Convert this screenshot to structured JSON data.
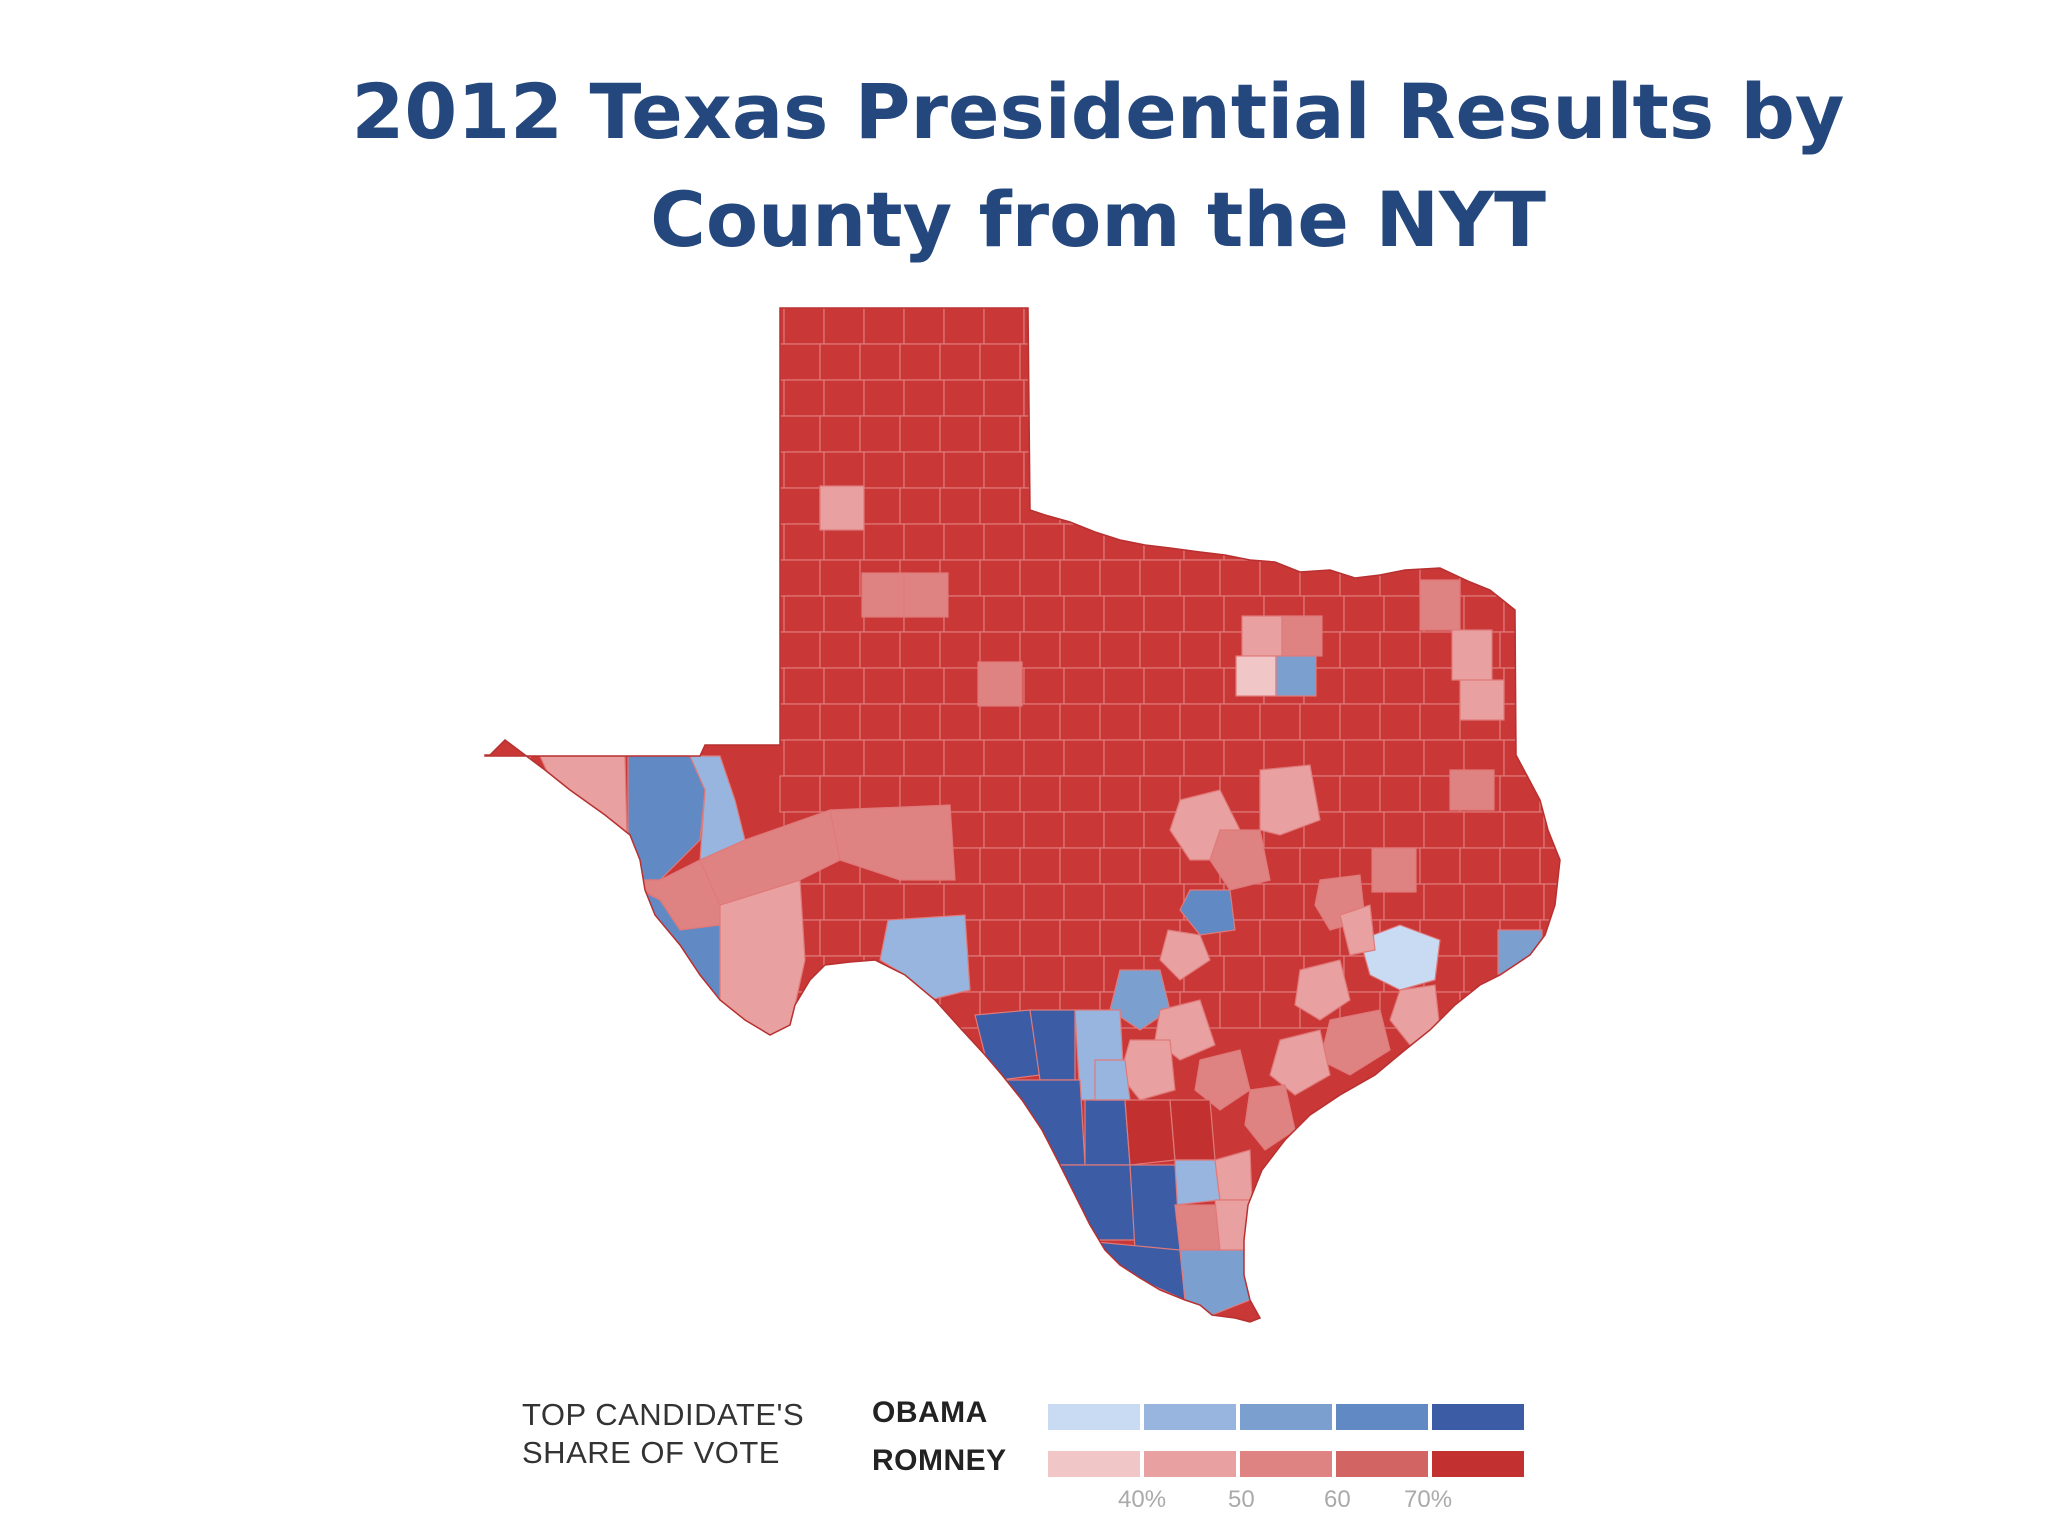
{
  "title": {
    "line1": "2012 Texas Presidential Results by",
    "line2": "County from the NYT"
  },
  "legend": {
    "caption_line1": "TOP CANDIDATE'S",
    "caption_line2": "SHARE OF VOTE",
    "obama_label": "OBAMA",
    "romney_label": "ROMNEY",
    "obama_colors": [
      "#c8dbf2",
      "#97b5de",
      "#7ba0d0",
      "#6189c3",
      "#3c5ca6"
    ],
    "romney_colors": [
      "#f1c6c6",
      "#e8a0a0",
      "#de8282",
      "#d26464",
      "#c23030"
    ],
    "ticks": [
      "40%",
      "50",
      "60",
      "70%"
    ]
  },
  "map": {
    "base_color": "#c93737",
    "border_color": "#e07a7a"
  }
}
